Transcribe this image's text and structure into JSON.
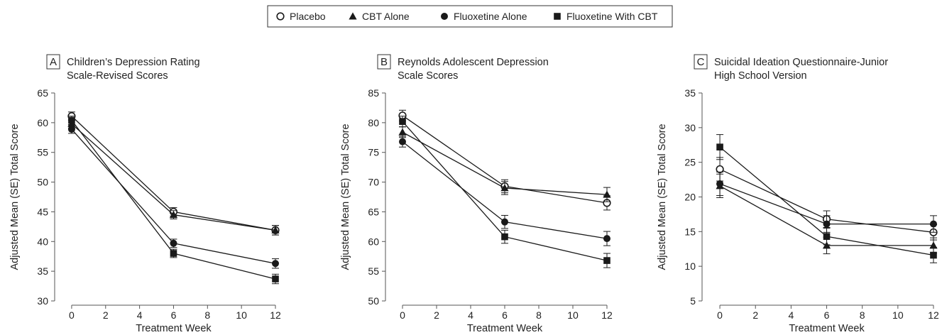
{
  "legend": [
    {
      "name": "Placebo",
      "marker": "circle-open"
    },
    {
      "name": "CBT Alone",
      "marker": "triangle"
    },
    {
      "name": "Fluoxetine Alone",
      "marker": "circle-filled"
    },
    {
      "name": "Fluoxetine With CBT",
      "marker": "square"
    }
  ],
  "colors": {
    "ink": "#1a1a1a",
    "axis": "#555555"
  },
  "chart_data": [
    {
      "type": "line",
      "panel_letter": "A",
      "title_lines": [
        "Children’s Depression Rating",
        "Scale-Revised Scores"
      ],
      "xlabel": "Treatment Week",
      "ylabel": "Adjusted Mean (SE) Total Score",
      "xlim": [
        -1,
        12
      ],
      "ylim": [
        30,
        65
      ],
      "xticks": [
        0,
        2,
        4,
        6,
        8,
        10,
        12
      ],
      "yticks": [
        30,
        35,
        40,
        45,
        50,
        55,
        60,
        65
      ],
      "x": [
        0,
        6,
        12
      ],
      "series": [
        {
          "name": "Placebo",
          "values": [
            61.1,
            45.0,
            41.9
          ],
          "se": [
            0.7,
            0.7,
            0.8
          ]
        },
        {
          "name": "CBT Alone",
          "values": [
            59.8,
            44.5,
            41.9
          ],
          "se": [
            0.7,
            0.7,
            0.8
          ]
        },
        {
          "name": "Fluoxetine Alone",
          "values": [
            58.9,
            39.7,
            36.3
          ],
          "se": [
            0.7,
            0.7,
            0.8
          ]
        },
        {
          "name": "Fluoxetine With CBT",
          "values": [
            60.4,
            38.0,
            33.7
          ],
          "se": [
            0.7,
            0.7,
            0.8
          ]
        }
      ]
    },
    {
      "type": "line",
      "panel_letter": "B",
      "title_lines": [
        "Reynolds Adolescent Depression",
        "Scale Scores"
      ],
      "xlabel": "Treatment Week",
      "ylabel": "Adjusted Mean (SE) Total Score",
      "xlim": [
        -1,
        12
      ],
      "ylim": [
        50,
        85
      ],
      "xticks": [
        0,
        2,
        4,
        6,
        8,
        10,
        12
      ],
      "yticks": [
        50,
        55,
        60,
        65,
        70,
        75,
        80,
        85
      ],
      "x": [
        0,
        6,
        12
      ],
      "series": [
        {
          "name": "Placebo",
          "values": [
            81.2,
            69.3,
            66.5
          ],
          "se": [
            0.9,
            1.1,
            1.2
          ]
        },
        {
          "name": "CBT Alone",
          "values": [
            78.4,
            69.0,
            67.9
          ],
          "se": [
            0.9,
            1.1,
            1.2
          ]
        },
        {
          "name": "Fluoxetine Alone",
          "values": [
            76.8,
            63.3,
            60.5
          ],
          "se": [
            0.9,
            1.1,
            1.2
          ]
        },
        {
          "name": "Fluoxetine With CBT",
          "values": [
            80.2,
            60.8,
            56.8
          ],
          "se": [
            0.9,
            1.1,
            1.2
          ]
        }
      ]
    },
    {
      "type": "line",
      "panel_letter": "C",
      "title_lines": [
        "Suicidal Ideation Questionnaire-Junior",
        "High School Version"
      ],
      "xlabel": "Treatment Week",
      "ylabel": "Adjusted Mean (SE) Total Score",
      "xlim": [
        -1,
        12
      ],
      "ylim": [
        5,
        35
      ],
      "xticks": [
        0,
        2,
        4,
        6,
        8,
        10,
        12
      ],
      "yticks": [
        5,
        10,
        15,
        20,
        25,
        30,
        35
      ],
      "x": [
        0,
        6,
        12
      ],
      "series": [
        {
          "name": "Placebo",
          "values": [
            24.0,
            16.8,
            14.9
          ],
          "se": [
            1.7,
            1.2,
            1.1
          ]
        },
        {
          "name": "CBT Alone",
          "values": [
            21.6,
            13.0,
            13.0
          ],
          "se": [
            1.7,
            1.2,
            1.1
          ]
        },
        {
          "name": "Fluoxetine Alone",
          "values": [
            21.9,
            16.1,
            16.1
          ],
          "se": [
            1.7,
            1.2,
            1.2
          ]
        },
        {
          "name": "Fluoxetine With CBT",
          "values": [
            27.2,
            14.3,
            11.6
          ],
          "se": [
            1.8,
            1.2,
            1.1
          ]
        }
      ]
    }
  ]
}
